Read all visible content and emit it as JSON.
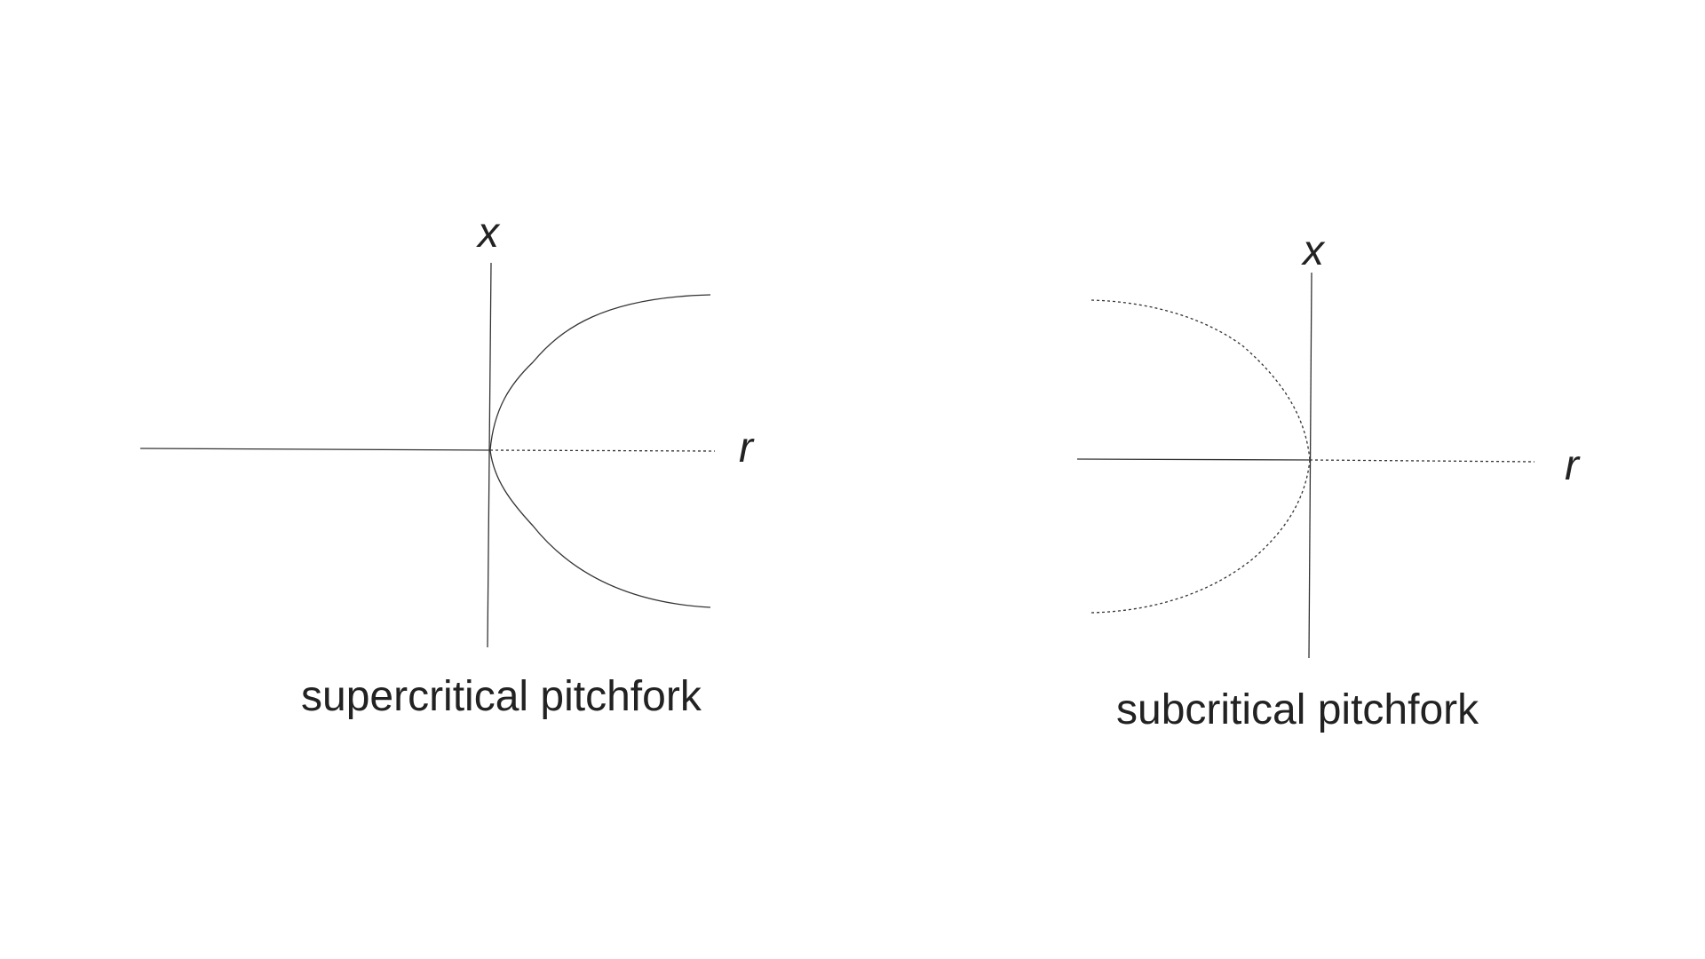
{
  "diagrams": [
    {
      "id": "supercritical",
      "x_axis_label": "r",
      "y_axis_label": "x",
      "caption": "supercritical pitchfork",
      "stable_branches": [
        "r<0: x=0",
        "r>0: x=+sqrt(r)",
        "r>0: x=-sqrt(r)"
      ],
      "unstable_branches": [
        "r>0: x=0"
      ]
    },
    {
      "id": "subcritical",
      "x_axis_label": "r",
      "y_axis_label": "x",
      "caption": "subcritical pitchfork",
      "stable_branches": [
        "r<0: x=0"
      ],
      "unstable_branches": [
        "r<0: x=+sqrt(-r)",
        "r<0: x=-sqrt(-r)",
        "r>0: x=0"
      ]
    }
  ],
  "colors": {
    "line": "#333333",
    "text": "#222222",
    "background": "#ffffff"
  }
}
